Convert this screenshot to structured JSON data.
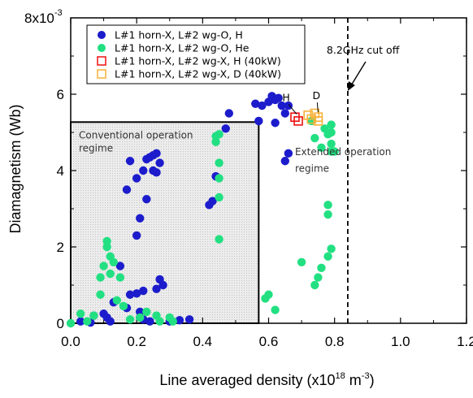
{
  "chart_data": {
    "type": "scatter",
    "title": "",
    "xlabel_main": "Line averaged density (x10",
    "xlabel_exp1": "18",
    "xlabel_unit": " m",
    "xlabel_exp2": "-3",
    "xlabel_close": ")",
    "ylabel": "Diamagnetism (Wb)",
    "y_multiplier_base": "8x10",
    "y_multiplier_exp": "-3",
    "xlim": [
      0,
      1.2
    ],
    "ylim": [
      0,
      8
    ],
    "x_ticks": [
      0.0,
      0.2,
      0.4,
      0.6,
      0.8,
      1.0,
      1.2
    ],
    "x_tick_labels": [
      "0.0",
      "0.2",
      "0.4",
      "0.6",
      "0.8",
      "1.0",
      "1.2"
    ],
    "y_ticks": [
      0,
      2,
      4,
      6
    ],
    "y_tick_labels": [
      "0",
      "2",
      "4",
      "6"
    ],
    "grid": false,
    "legend_position": "top-left",
    "series": [
      {
        "name": "L#1 horn-X, L#2 wg-O, H",
        "marker": "filled-circle",
        "color": "#1c1ccc",
        "points": [
          [
            0.03,
            0.05
          ],
          [
            0.06,
            0.02
          ],
          [
            0.07,
            0.2
          ],
          [
            0.1,
            0.25
          ],
          [
            0.11,
            0.15
          ],
          [
            0.12,
            0.05
          ],
          [
            0.13,
            0.55
          ],
          [
            0.15,
            1.5
          ],
          [
            0.17,
            0.4
          ],
          [
            0.18,
            0.75
          ],
          [
            0.2,
            0.78
          ],
          [
            0.21,
            0.15
          ],
          [
            0.21,
            0.3
          ],
          [
            0.22,
            0.85
          ],
          [
            0.22,
            0.1
          ],
          [
            0.24,
            0.05
          ],
          [
            0.26,
            0.9
          ],
          [
            0.27,
            1.15
          ],
          [
            0.28,
            1.0
          ],
          [
            0.3,
            0.05
          ],
          [
            0.33,
            0.08
          ],
          [
            0.36,
            0.1
          ],
          [
            0.2,
            2.3
          ],
          [
            0.21,
            2.75
          ],
          [
            0.23,
            3.25
          ],
          [
            0.17,
            3.5
          ],
          [
            0.2,
            3.8
          ],
          [
            0.18,
            4.25
          ],
          [
            0.22,
            4.0
          ],
          [
            0.23,
            4.3
          ],
          [
            0.24,
            4.35
          ],
          [
            0.25,
            4.4
          ],
          [
            0.26,
            4.45
          ],
          [
            0.27,
            4.2
          ],
          [
            0.25,
            4.0
          ],
          [
            0.26,
            3.95
          ],
          [
            0.42,
            3.1
          ],
          [
            0.43,
            3.2
          ],
          [
            0.44,
            3.85
          ],
          [
            0.47,
            5.1
          ],
          [
            0.48,
            5.5
          ],
          [
            0.56,
            5.75
          ],
          [
            0.58,
            5.7
          ],
          [
            0.6,
            5.8
          ],
          [
            0.61,
            5.95
          ],
          [
            0.62,
            5.85
          ],
          [
            0.63,
            5.9
          ],
          [
            0.64,
            5.7
          ],
          [
            0.65,
            5.5
          ],
          [
            0.66,
            5.7
          ],
          [
            0.57,
            5.3
          ],
          [
            0.62,
            5.25
          ],
          [
            0.66,
            4.45
          ],
          [
            0.65,
            4.25
          ]
        ]
      },
      {
        "name": "L#1 horn-X, L#2 wg-O, He",
        "marker": "filled-circle",
        "color": "#22e082",
        "points": [
          [
            0.0,
            0.0
          ],
          [
            0.03,
            0.25
          ],
          [
            0.05,
            0.05
          ],
          [
            0.07,
            0.2
          ],
          [
            0.09,
            0.75
          ],
          [
            0.09,
            1.2
          ],
          [
            0.1,
            1.5
          ],
          [
            0.11,
            2.0
          ],
          [
            0.11,
            2.15
          ],
          [
            0.12,
            1.75
          ],
          [
            0.12,
            1.3
          ],
          [
            0.13,
            1.6
          ],
          [
            0.14,
            0.6
          ],
          [
            0.15,
            1.2
          ],
          [
            0.16,
            0.45
          ],
          [
            0.18,
            0.1
          ],
          [
            0.21,
            0.15
          ],
          [
            0.23,
            0.3
          ],
          [
            0.26,
            0.2
          ],
          [
            0.27,
            0.05
          ],
          [
            0.3,
            0.15
          ],
          [
            0.31,
            0.05
          ],
          [
            0.45,
            2.2
          ],
          [
            0.45,
            3.3
          ],
          [
            0.45,
            3.8
          ],
          [
            0.45,
            4.2
          ],
          [
            0.44,
            4.75
          ],
          [
            0.44,
            4.9
          ],
          [
            0.45,
            4.95
          ],
          [
            0.59,
            0.65
          ],
          [
            0.6,
            0.75
          ],
          [
            0.62,
            0.35
          ],
          [
            0.7,
            1.6
          ],
          [
            0.73,
            5.3
          ],
          [
            0.74,
            1.0
          ],
          [
            0.74,
            4.85
          ],
          [
            0.75,
            1.2
          ],
          [
            0.76,
            1.45
          ],
          [
            0.76,
            4.6
          ],
          [
            0.77,
            5.1
          ],
          [
            0.78,
            2.85
          ],
          [
            0.78,
            3.1
          ],
          [
            0.78,
            4.95
          ],
          [
            0.78,
            1.75
          ],
          [
            0.79,
            1.95
          ],
          [
            0.79,
            4.5
          ],
          [
            0.79,
            4.7
          ],
          [
            0.79,
            5.0
          ],
          [
            0.79,
            5.2
          ],
          [
            0.8,
            4.5
          ]
        ]
      },
      {
        "name": "L#1 horn-X, L#2 wg-X, H (40kW)",
        "marker": "open-square",
        "color": "#ee1111",
        "points": [
          [
            0.68,
            5.4
          ],
          [
            0.69,
            5.3
          ]
        ]
      },
      {
        "name": "L#1 horn-X, L#2 wg-X, D (40kW)",
        "marker": "open-square",
        "color": "#f7b23b",
        "points": [
          [
            0.72,
            5.45
          ],
          [
            0.73,
            5.35
          ],
          [
            0.74,
            5.5
          ],
          [
            0.75,
            5.3
          ],
          [
            0.75,
            5.4
          ]
        ]
      }
    ],
    "regions": [
      {
        "label_line1": "Conventional operation",
        "label_line2": "regime",
        "x": [
          0,
          0.57
        ],
        "y": [
          0,
          5.27
        ]
      }
    ],
    "reference_lines": [
      {
        "orientation": "vertical",
        "x": 0.84,
        "style": "dashed",
        "label": "8.2GHz cut off"
      }
    ],
    "annotations": [
      {
        "text": "H",
        "anchor_x": 0.69,
        "anchor_y": 5.35
      },
      {
        "text": "D",
        "anchor_x": 0.75,
        "anchor_y": 5.4
      },
      {
        "text": "Extended operation",
        "text2": "regime"
      }
    ]
  }
}
